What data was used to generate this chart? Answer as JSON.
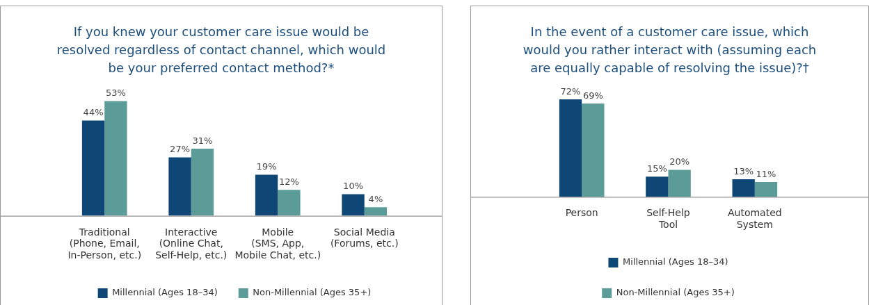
{
  "chart_data": [
    {
      "type": "bar",
      "title": "If you knew your customer care issue would be resolved regardless of contact channel, which would be your preferred contact method?*",
      "categories": [
        "Traditional\n(Phone, Email,\nIn-Person, etc.)",
        "Interactive\n(Online Chat,\nSelf-Help, etc.)",
        "Mobile\n(SMS, App,\nMobile Chat, etc.)",
        "Social Media\n(Forums, etc.)"
      ],
      "series": [
        {
          "name": "Millennial (Ages 18–34)",
          "color": "#0e4775",
          "values": [
            44,
            27,
            19,
            10
          ],
          "value_labels": [
            "44%",
            "27%",
            "19%",
            "10%"
          ]
        },
        {
          "name": "Non-Millennial (Ages 35+)",
          "color": "#5b9c99",
          "values": [
            53,
            31,
            12,
            4
          ],
          "value_labels": [
            "53%",
            "31%",
            "12%",
            "4%"
          ]
        }
      ],
      "legend": "bottom"
    },
    {
      "type": "bar",
      "title": "In the event of a customer care issue, which would you rather interact with (assuming each are equally capable of resolving the issue)?†",
      "categories": [
        "Person",
        "Self-Help\nTool",
        "Automated\nSystem"
      ],
      "series": [
        {
          "name": "Millennial (Ages 18–34)",
          "color": "#0e4775",
          "values": [
            72,
            15,
            13
          ],
          "value_labels": [
            "72%",
            "15%",
            "13%"
          ]
        },
        {
          "name": "Non-Millennial (Ages 35+)",
          "color": "#5b9c99",
          "values": [
            69,
            20,
            11
          ],
          "value_labels": [
            "69%",
            "20%",
            "11%"
          ]
        }
      ],
      "legend": "bottom"
    }
  ]
}
